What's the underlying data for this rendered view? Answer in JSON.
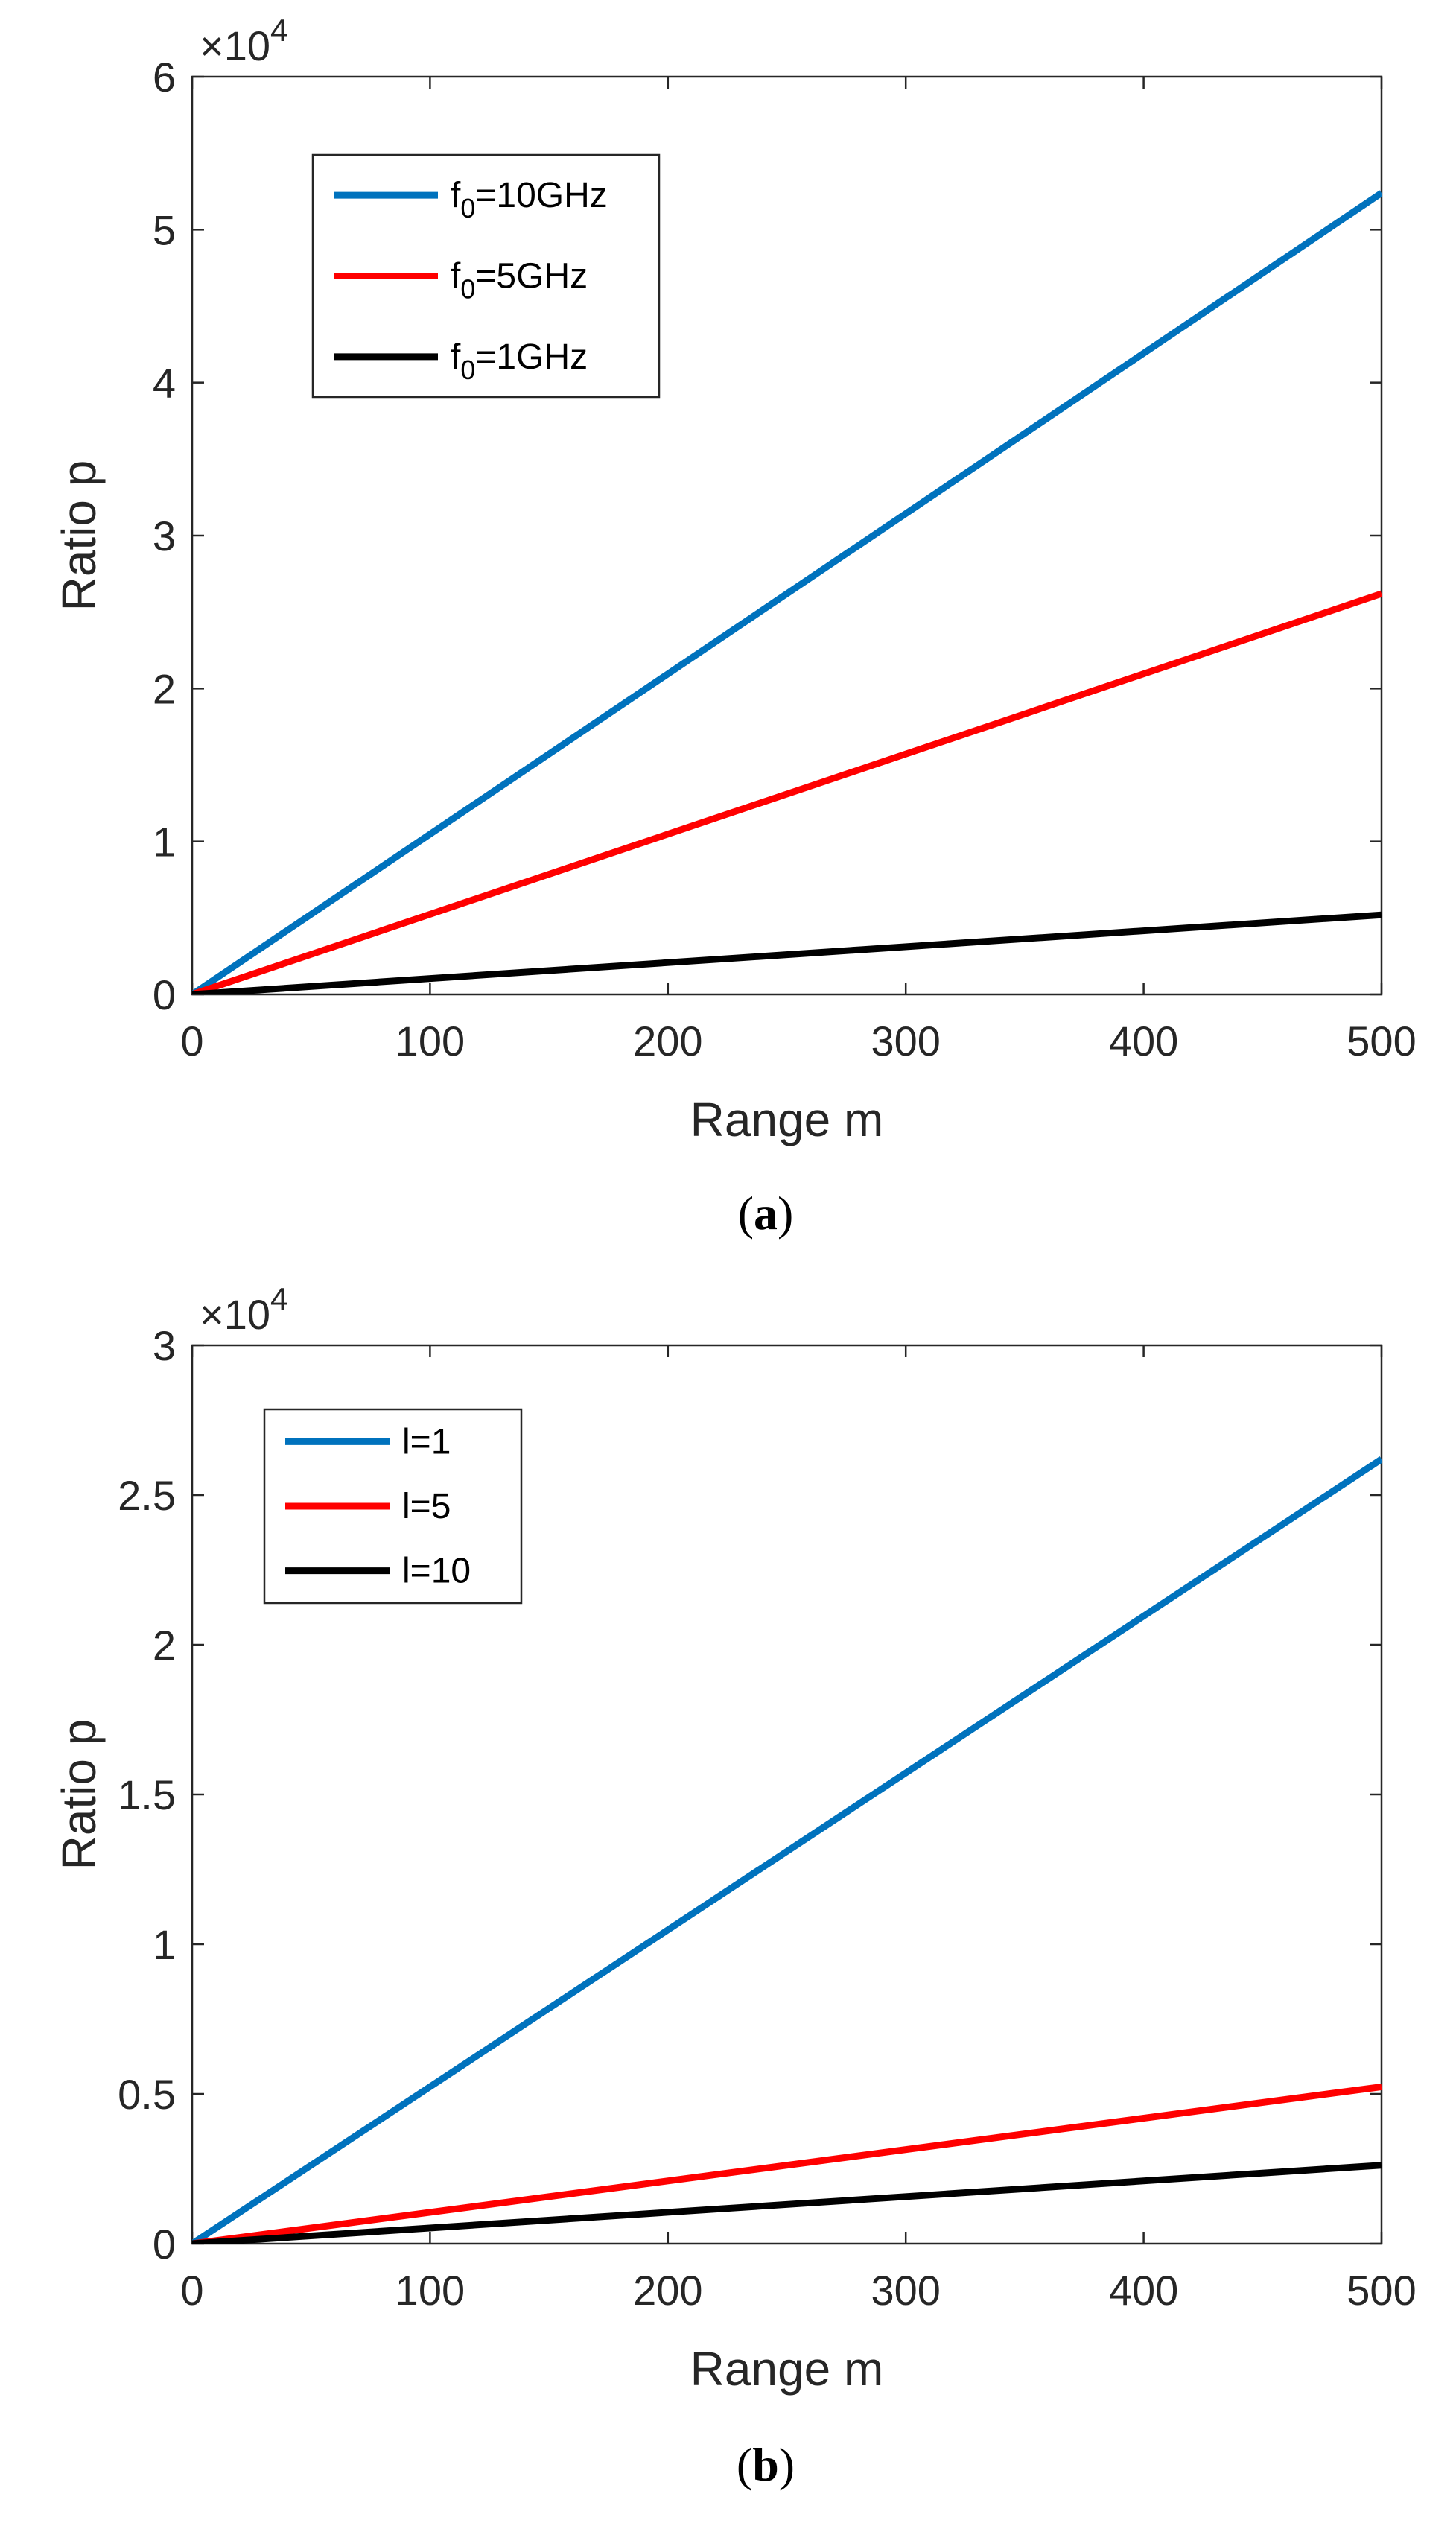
{
  "chart_data": [
    {
      "type": "line",
      "id": "a",
      "caption_letter": "a",
      "xlabel": "Range m",
      "ylabel": "Ratio p",
      "xlim": [
        0,
        500
      ],
      "ylim": [
        0,
        6
      ],
      "xticks": [
        0,
        100,
        200,
        300,
        400,
        500
      ],
      "yticks": [
        0,
        1,
        2,
        3,
        4,
        5,
        6
      ],
      "xtick_labels": [
        "0",
        "100",
        "200",
        "300",
        "400",
        "500"
      ],
      "ytick_labels": [
        "0",
        "1",
        "2",
        "3",
        "4",
        "5",
        "6"
      ],
      "exponent_base": "×10",
      "exponent_power": "4",
      "legend_position": "top-left",
      "series": [
        {
          "name": "f0=10GHz",
          "legend_main": "f",
          "legend_sub": "0",
          "legend_rest": "=10GHz",
          "color": "#0072BD",
          "x": [
            0,
            500
          ],
          "y": [
            0,
            5.24
          ]
        },
        {
          "name": "f0=5GHz",
          "legend_main": "f",
          "legend_sub": "0",
          "legend_rest": "=5GHz",
          "color": "#FF0000",
          "x": [
            0,
            500
          ],
          "y": [
            0,
            2.62
          ]
        },
        {
          "name": "f0=1GHz",
          "legend_main": "f",
          "legend_sub": "0",
          "legend_rest": "=1GHz",
          "color": "#000000",
          "x": [
            0,
            500
          ],
          "y": [
            0,
            0.52
          ]
        }
      ]
    },
    {
      "type": "line",
      "id": "b",
      "caption_letter": "b",
      "xlabel": "Range m",
      "ylabel": "Ratio p",
      "xlim": [
        0,
        500
      ],
      "ylim": [
        0,
        3
      ],
      "xticks": [
        0,
        100,
        200,
        300,
        400,
        500
      ],
      "yticks": [
        0,
        0.5,
        1,
        1.5,
        2,
        2.5,
        3
      ],
      "xtick_labels": [
        "0",
        "100",
        "200",
        "300",
        "400",
        "500"
      ],
      "ytick_labels": [
        "0",
        "0.5",
        "1",
        "1.5",
        "2",
        "2.5",
        "3"
      ],
      "exponent_base": "×10",
      "exponent_power": "4",
      "legend_position": "top-left",
      "series": [
        {
          "name": "l=1",
          "legend_main": "l=1",
          "legend_sub": "",
          "legend_rest": "",
          "color": "#0072BD",
          "x": [
            0,
            500
          ],
          "y": [
            0,
            2.62
          ]
        },
        {
          "name": "l=5",
          "legend_main": "l=5",
          "legend_sub": "",
          "legend_rest": "",
          "color": "#FF0000",
          "x": [
            0,
            500
          ],
          "y": [
            0,
            0.524
          ]
        },
        {
          "name": "l=10",
          "legend_main": "l=10",
          "legend_sub": "",
          "legend_rest": "",
          "color": "#000000",
          "x": [
            0,
            500
          ],
          "y": [
            0,
            0.262
          ]
        }
      ]
    }
  ]
}
